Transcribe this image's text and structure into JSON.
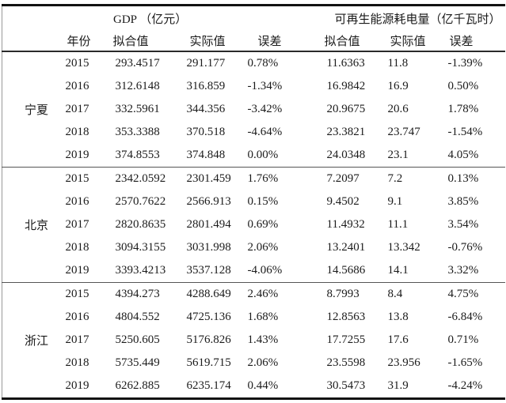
{
  "table": {
    "header_groups": [
      {
        "label": "GDP （亿元）"
      },
      {
        "label": "可再生能源耗电量（亿千瓦时）"
      }
    ],
    "col_headers": [
      "年份",
      "拟合值",
      "实际值",
      "误差",
      "拟合值",
      "实际值",
      "误差"
    ],
    "groups": [
      {
        "region": "宁夏",
        "rows": [
          {
            "year": "2015",
            "gdp_fit": "293.4517",
            "gdp_actual": "291.177",
            "gdp_err": "0.78%",
            "re_fit": "11.6363",
            "re_actual": "11.8",
            "re_err": "-1.39%"
          },
          {
            "year": "2016",
            "gdp_fit": "312.6148",
            "gdp_actual": "316.859",
            "gdp_err": "-1.34%",
            "re_fit": "16.9842",
            "re_actual": "16.9",
            "re_err": "0.50%"
          },
          {
            "year": "2017",
            "gdp_fit": "332.5961",
            "gdp_actual": "344.356",
            "gdp_err": "-3.42%",
            "re_fit": "20.9675",
            "re_actual": "20.6",
            "re_err": "1.78%"
          },
          {
            "year": "2018",
            "gdp_fit": "353.3388",
            "gdp_actual": "370.518",
            "gdp_err": "-4.64%",
            "re_fit": "23.3821",
            "re_actual": "23.747",
            "re_err": "-1.54%"
          },
          {
            "year": "2019",
            "gdp_fit": "374.8553",
            "gdp_actual": "374.848",
            "gdp_err": "0.00%",
            "re_fit": "24.0348",
            "re_actual": "23.1",
            "re_err": "4.05%"
          }
        ]
      },
      {
        "region": "北京",
        "rows": [
          {
            "year": "2015",
            "gdp_fit": "2342.0592",
            "gdp_actual": "2301.459",
            "gdp_err": "1.76%",
            "re_fit": "7.2097",
            "re_actual": "7.2",
            "re_err": "0.13%"
          },
          {
            "year": "2016",
            "gdp_fit": "2570.7622",
            "gdp_actual": "2566.913",
            "gdp_err": "0.15%",
            "re_fit": "9.4502",
            "re_actual": "9.1",
            "re_err": "3.85%"
          },
          {
            "year": "2017",
            "gdp_fit": "2820.8635",
            "gdp_actual": "2801.494",
            "gdp_err": "0.69%",
            "re_fit": "11.4932",
            "re_actual": "11.1",
            "re_err": "3.54%"
          },
          {
            "year": "2018",
            "gdp_fit": "3094.3155",
            "gdp_actual": "3031.998",
            "gdp_err": "2.06%",
            "re_fit": "13.2401",
            "re_actual": "13.342",
            "re_err": "-0.76%"
          },
          {
            "year": "2019",
            "gdp_fit": "3393.4213",
            "gdp_actual": "3537.128",
            "gdp_err": "-4.06%",
            "re_fit": "14.5686",
            "re_actual": "14.1",
            "re_err": "3.32%"
          }
        ]
      },
      {
        "region": "浙江",
        "rows": [
          {
            "year": "2015",
            "gdp_fit": "4394.273",
            "gdp_actual": "4288.649",
            "gdp_err": "2.46%",
            "re_fit": "8.7993",
            "re_actual": "8.4",
            "re_err": "4.75%"
          },
          {
            "year": "2016",
            "gdp_fit": "4804.552",
            "gdp_actual": "4725.136",
            "gdp_err": "1.68%",
            "re_fit": "12.8563",
            "re_actual": "13.8",
            "re_err": "-6.84%"
          },
          {
            "year": "2017",
            "gdp_fit": "5250.605",
            "gdp_actual": "5176.826",
            "gdp_err": "1.43%",
            "re_fit": "17.7255",
            "re_actual": "17.6",
            "re_err": "0.71%"
          },
          {
            "year": "2018",
            "gdp_fit": "5735.449",
            "gdp_actual": "5619.715",
            "gdp_err": "2.06%",
            "re_fit": "23.5598",
            "re_actual": "23.956",
            "re_err": "-1.65%"
          },
          {
            "year": "2019",
            "gdp_fit": "6262.885",
            "gdp_actual": "6235.174",
            "gdp_err": "0.44%",
            "re_fit": "30.5473",
            "re_actual": "31.9",
            "re_err": "-4.24%"
          }
        ]
      }
    ]
  }
}
